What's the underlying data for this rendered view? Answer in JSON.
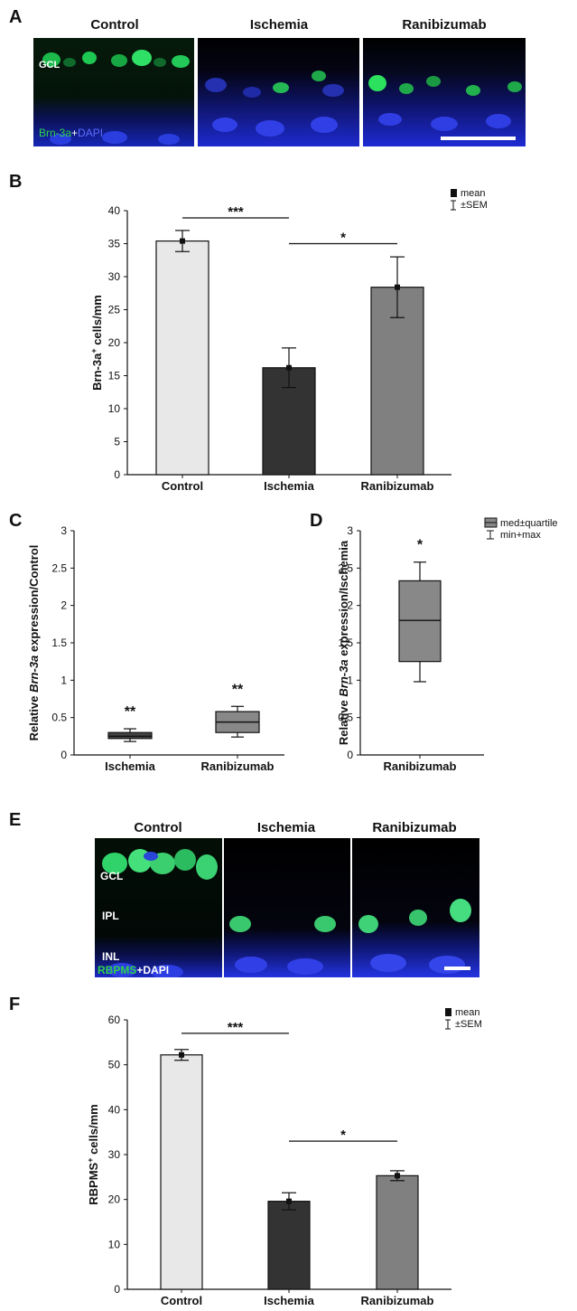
{
  "panel_A": {
    "letter": "A",
    "columns": [
      "Control",
      "Ischemia",
      "Ranibizumab"
    ],
    "gcl_label": "GCL",
    "stain": {
      "marker": "Brn-3a",
      "plus": "+",
      "counter": "DAPI"
    }
  },
  "panel_E": {
    "letter": "E",
    "columns": [
      "Control",
      "Ischemia",
      "Ranibizumab"
    ],
    "layer_labels": [
      "GCL",
      "IPL",
      "INL"
    ],
    "stain": {
      "marker": "RBPMS",
      "plus": "+",
      "counter": "DAPI"
    }
  },
  "chart_data": [
    {
      "id": "B",
      "letter": "B",
      "type": "bar",
      "categories": [
        "Control",
        "Ischemia",
        "Ranibizumab"
      ],
      "values": [
        35.4,
        16.2,
        28.4
      ],
      "sem": [
        1.6,
        3.0,
        4.6
      ],
      "colors": [
        "#e8e8e8",
        "#333333",
        "#808080"
      ],
      "ylabel_pre": "Brn-3a",
      "ylabel_sup": "+",
      "ylabel_post": " cells/mm",
      "ylim": [
        0,
        40
      ],
      "yticks": [
        "0",
        "5",
        "10",
        "15",
        "20",
        "25",
        "30",
        "35",
        "40"
      ],
      "legend": [
        "mean",
        "±SEM"
      ],
      "legend_position": "top-right",
      "significance": [
        {
          "from": 0,
          "to": 1,
          "label": "***",
          "y": 38.9
        },
        {
          "from": 1,
          "to": 2,
          "label": "*",
          "y": 35.0
        }
      ]
    },
    {
      "id": "C",
      "letter": "C",
      "type": "box",
      "categories": [
        "Ischemia",
        "Ranibizumab"
      ],
      "boxes": [
        {
          "min": 0.18,
          "q1": 0.22,
          "median": 0.25,
          "q3": 0.3,
          "max": 0.35,
          "label": "**"
        },
        {
          "min": 0.24,
          "q1": 0.3,
          "median": 0.44,
          "q3": 0.58,
          "max": 0.65,
          "label": "**"
        }
      ],
      "colors": [
        "#444444",
        "#888888"
      ],
      "ylabel_pre": "Relative ",
      "ylabel_it": "Brn-3a",
      "ylabel_post": " expression/Control",
      "ylim": [
        0,
        3
      ],
      "yticks": [
        "0",
        "0.5",
        "1",
        "1.5",
        "2",
        "2.5",
        "3"
      ]
    },
    {
      "id": "D",
      "letter": "D",
      "type": "box",
      "categories": [
        "Ranibizumab"
      ],
      "boxes": [
        {
          "min": 0.98,
          "q1": 1.25,
          "median": 1.8,
          "q3": 2.33,
          "max": 2.58,
          "label": "*"
        }
      ],
      "colors": [
        "#888888"
      ],
      "ylabel_pre": "Relative ",
      "ylabel_it": "Brn-3a",
      "ylabel_post": " expression/Ischemia",
      "ylim": [
        0,
        3
      ],
      "yticks": [
        "0",
        "0.5",
        "1",
        "1.5",
        "2",
        "2.5",
        "3"
      ],
      "legend": [
        "med±quartile",
        "min+max"
      ],
      "legend_position": "top-right"
    },
    {
      "id": "F",
      "letter": "F",
      "type": "bar",
      "categories": [
        "Control",
        "Ischemia",
        "Ranibizumab"
      ],
      "values": [
        52.2,
        19.6,
        25.3
      ],
      "sem": [
        1.2,
        1.9,
        1.1
      ],
      "colors": [
        "#e8e8e8",
        "#333333",
        "#808080"
      ],
      "ylabel_pre": "RBPMS",
      "ylabel_sup": "+",
      "ylabel_post": " cells/mm",
      "ylim": [
        0,
        60
      ],
      "yticks": [
        "0",
        "10",
        "20",
        "30",
        "40",
        "50",
        "60"
      ],
      "legend": [
        "mean",
        "±SEM"
      ],
      "legend_position": "top-right",
      "significance": [
        {
          "from": 0,
          "to": 1,
          "label": "***",
          "y": 57.0
        },
        {
          "from": 1,
          "to": 2,
          "label": "*",
          "y": 33.0
        }
      ]
    }
  ]
}
